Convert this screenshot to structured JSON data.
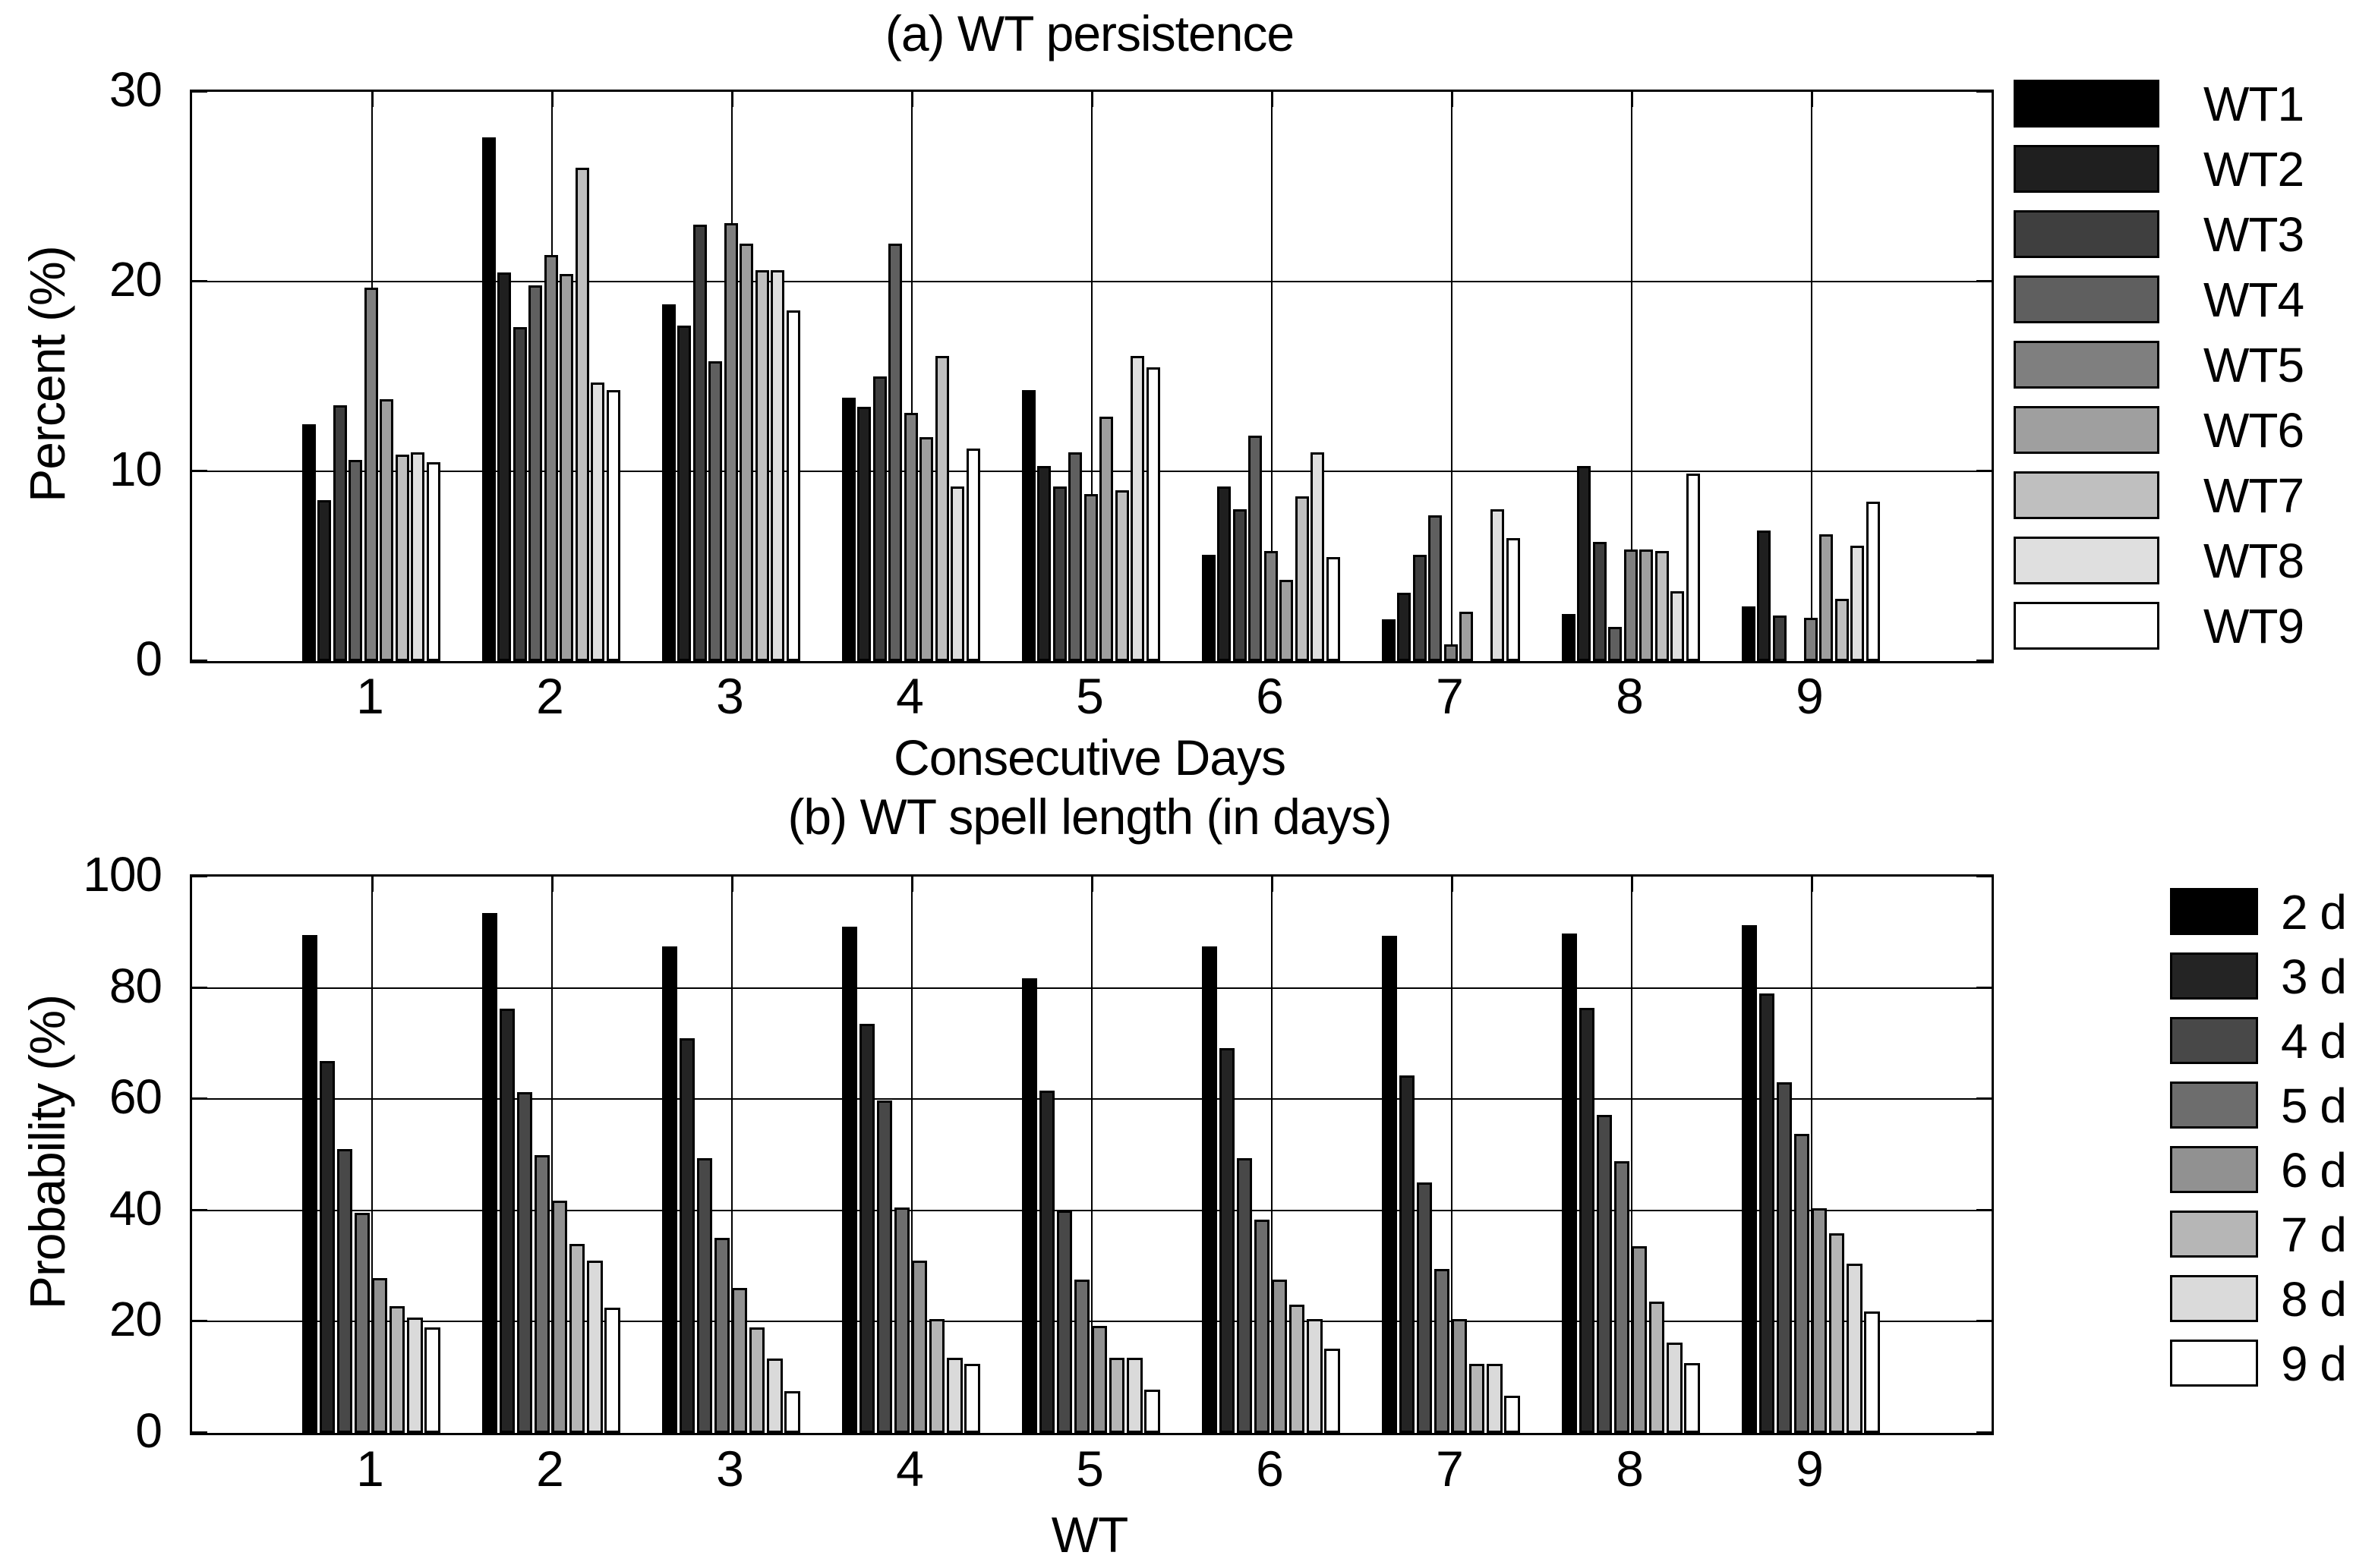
{
  "figure": {
    "background": "#ffffff",
    "axis_color": "#000000"
  },
  "chart_data": [
    {
      "type": "bar",
      "panel": "a",
      "title": "(a) WT persistence",
      "xlabel": "Consecutive Days",
      "ylabel": "Percent (%)",
      "ylim": [
        0,
        30
      ],
      "yticks": [
        0,
        10,
        20,
        30
      ],
      "categories": [
        "1",
        "2",
        "3",
        "4",
        "5",
        "6",
        "7",
        "8",
        "9"
      ],
      "grid": true,
      "legend_position": "right-outside",
      "series": [
        {
          "name": "WT1",
          "color": "#000000",
          "values": [
            12.5,
            27.6,
            18.8,
            13.9,
            14.3,
            5.6,
            2.2,
            2.5,
            2.9
          ]
        },
        {
          "name": "WT2",
          "color": "#1f1f1f",
          "values": [
            8.5,
            20.5,
            17.7,
            13.4,
            10.3,
            9.2,
            3.6,
            10.3,
            6.9
          ]
        },
        {
          "name": "WT3",
          "color": "#3f3f3f",
          "values": [
            13.5,
            17.6,
            23.0,
            15.0,
            9.2,
            8.0,
            5.6,
            6.3,
            2.4
          ]
        },
        {
          "name": "WT4",
          "color": "#5f5f5f",
          "values": [
            10.6,
            19.8,
            15.8,
            22.0,
            11.0,
            11.9,
            7.7,
            1.8,
            0
          ]
        },
        {
          "name": "WT5",
          "color": "#7f7f7f",
          "values": [
            19.7,
            21.4,
            23.1,
            13.1,
            8.8,
            5.8,
            0.9,
            5.9,
            2.3
          ]
        },
        {
          "name": "WT6",
          "color": "#9f9f9f",
          "values": [
            13.8,
            20.4,
            22.0,
            11.8,
            12.9,
            4.3,
            2.6,
            5.9,
            6.7
          ]
        },
        {
          "name": "WT7",
          "color": "#bfbfbf",
          "values": [
            10.9,
            26.0,
            20.6,
            16.1,
            9.0,
            8.7,
            0,
            5.8,
            3.3
          ]
        },
        {
          "name": "WT8",
          "color": "#dfdfdf",
          "values": [
            11.0,
            14.7,
            20.6,
            9.2,
            16.1,
            11.0,
            8.0,
            3.7,
            6.1
          ]
        },
        {
          "name": "WT9",
          "color": "#ffffff",
          "values": [
            10.5,
            14.3,
            18.5,
            11.2,
            15.5,
            5.5,
            6.5,
            9.9,
            8.4
          ]
        }
      ]
    },
    {
      "type": "bar",
      "panel": "b",
      "title": "(b) WT spell length (in days)",
      "xlabel": "WT",
      "ylabel": "Probability (%)",
      "ylim": [
        0,
        100
      ],
      "yticks": [
        0,
        20,
        40,
        60,
        80,
        100
      ],
      "categories": [
        "1",
        "2",
        "3",
        "4",
        "5",
        "6",
        "7",
        "8",
        "9"
      ],
      "grid": true,
      "legend_position": "right-outside",
      "series": [
        {
          "name": "2 d",
          "color": "#000000",
          "values": [
            89.5,
            93.4,
            87.5,
            91.0,
            81.7,
            87.4,
            89.4,
            89.8,
            91.3
          ]
        },
        {
          "name": "3 d",
          "color": "#242424",
          "values": [
            66.8,
            76.3,
            71.0,
            73.5,
            61.5,
            69.2,
            64.3,
            76.4,
            79.0
          ]
        },
        {
          "name": "4 d",
          "color": "#484848",
          "values": [
            51.0,
            61.3,
            49.4,
            59.7,
            40.0,
            49.4,
            45.0,
            57.1,
            63.0
          ]
        },
        {
          "name": "5 d",
          "color": "#6d6d6d",
          "values": [
            39.5,
            50.0,
            35.0,
            40.5,
            27.6,
            38.4,
            29.5,
            48.8,
            53.8
          ]
        },
        {
          "name": "6 d",
          "color": "#919191",
          "values": [
            27.8,
            41.8,
            26.0,
            31.0,
            19.2,
            27.5,
            20.4,
            33.6,
            40.4
          ]
        },
        {
          "name": "7 d",
          "color": "#b6b6b6",
          "values": [
            22.8,
            34.0,
            19.0,
            20.5,
            13.5,
            23.0,
            12.4,
            23.6,
            35.9
          ]
        },
        {
          "name": "8 d",
          "color": "#dadada",
          "values": [
            20.8,
            31.0,
            13.4,
            13.5,
            13.5,
            20.4,
            12.4,
            16.3,
            30.4
          ]
        },
        {
          "name": "9 d",
          "color": "#ffffff",
          "values": [
            18.9,
            22.5,
            7.5,
            12.4,
            7.8,
            15.2,
            6.7,
            12.5,
            21.8
          ]
        }
      ]
    }
  ]
}
